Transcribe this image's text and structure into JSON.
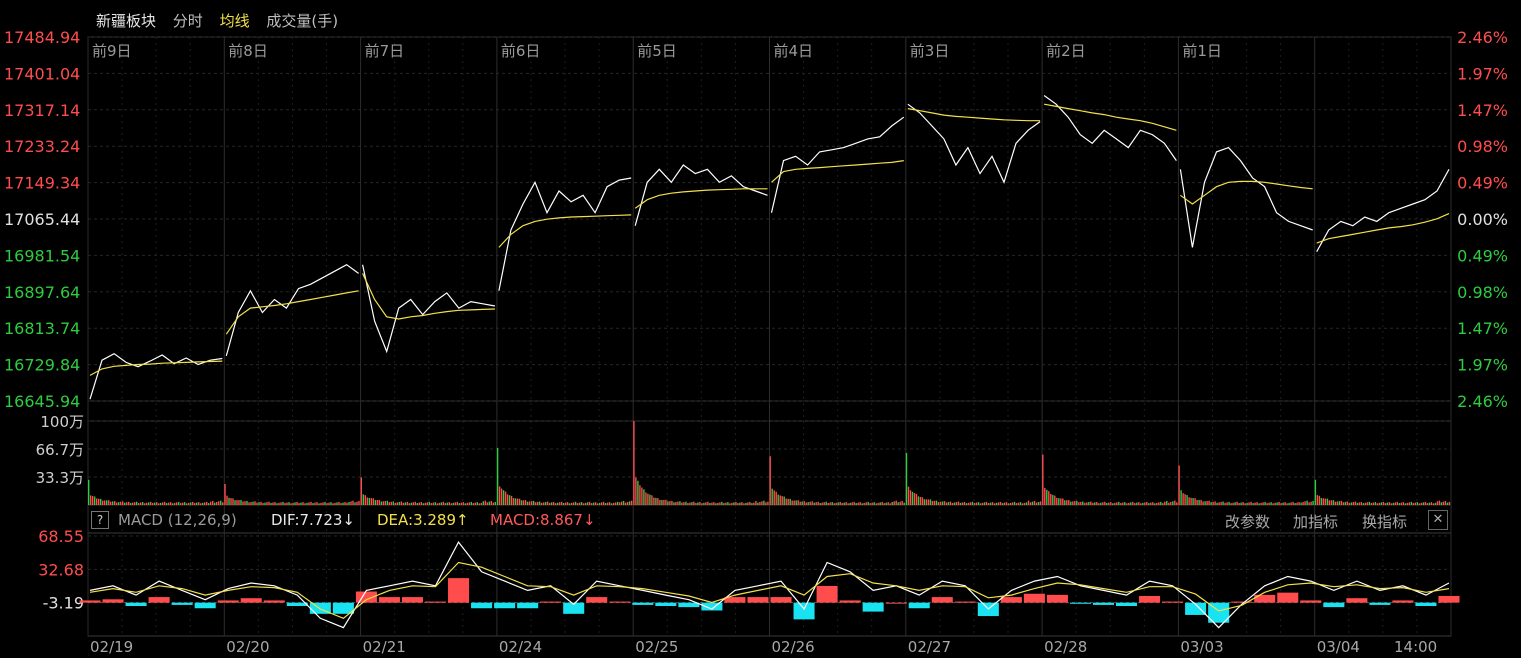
{
  "header": {
    "name": "新疆板块",
    "mode": "分时",
    "avg_label": "均线",
    "vol_label": "成交量(手)"
  },
  "colors": {
    "up": "#ff4d4d",
    "down": "#2ecc40",
    "price_line": "#ffffff",
    "avg_line": "#f2e04a",
    "macd_neg": "#19e3f0",
    "grid": "#2a2a2a"
  },
  "chart_data": {
    "type": "line",
    "day_labels": [
      "前9日",
      "前8日",
      "前7日",
      "前6日",
      "前5日",
      "前4日",
      "前3日",
      "前2日",
      "前1日"
    ],
    "dates": [
      "02/19",
      "02/20",
      "02/21",
      "02/24",
      "02/25",
      "02/26",
      "02/27",
      "02/28",
      "03/03",
      "03/04"
    ],
    "time_label": "14:00",
    "price_ticks": [
      "17484.94",
      "17401.04",
      "17317.14",
      "17233.24",
      "17149.34",
      "17065.44",
      "16981.54",
      "16897.64",
      "16813.74",
      "16729.84",
      "16645.94"
    ],
    "pct_ticks": [
      "2.46%",
      "1.97%",
      "1.47%",
      "0.98%",
      "0.49%",
      "0.00%",
      "0.49%",
      "0.98%",
      "1.47%",
      "1.97%",
      "2.46%"
    ],
    "price_range": [
      16645.94,
      17484.94
    ],
    "base_price": 17065.44,
    "days": [
      {
        "price": [
          16650,
          16740,
          16755,
          16735,
          16725,
          16738,
          16752,
          16732,
          16745,
          16730,
          16740,
          16744
        ],
        "avg": [
          16705,
          16720,
          16726,
          16728,
          16730,
          16731,
          16733,
          16734,
          16735,
          16736,
          16737,
          16738
        ]
      },
      {
        "price": [
          16750,
          16850,
          16900,
          16850,
          16880,
          16860,
          16905,
          16915,
          16930,
          16945,
          16960,
          16940
        ],
        "avg": [
          16800,
          16840,
          16860,
          16863,
          16866,
          16870,
          16875,
          16880,
          16885,
          16890,
          16895,
          16900
        ]
      },
      {
        "price": [
          16960,
          16830,
          16760,
          16860,
          16880,
          16845,
          16875,
          16895,
          16860,
          16875,
          16870,
          16865
        ],
        "avg": [
          16940,
          16880,
          16840,
          16835,
          16840,
          16843,
          16848,
          16852,
          16855,
          16856,
          16857,
          16858
        ]
      },
      {
        "price": [
          16900,
          17040,
          17100,
          17150,
          17080,
          17130,
          17105,
          17120,
          17080,
          17140,
          17155,
          17160
        ],
        "avg": [
          17000,
          17030,
          17050,
          17060,
          17065,
          17068,
          17070,
          17071,
          17072,
          17073,
          17074,
          17075
        ]
      },
      {
        "price": [
          17050,
          17150,
          17180,
          17150,
          17190,
          17170,
          17180,
          17150,
          17165,
          17140,
          17130,
          17120
        ],
        "avg": [
          17090,
          17110,
          17120,
          17125,
          17128,
          17130,
          17132,
          17133,
          17134,
          17135,
          17135,
          17135
        ]
      },
      {
        "price": [
          17080,
          17200,
          17210,
          17190,
          17220,
          17225,
          17230,
          17240,
          17250,
          17255,
          17280,
          17300
        ],
        "avg": [
          17150,
          17175,
          17180,
          17182,
          17184,
          17186,
          17188,
          17190,
          17192,
          17194,
          17196,
          17200
        ]
      },
      {
        "price": [
          17330,
          17310,
          17280,
          17250,
          17190,
          17230,
          17170,
          17210,
          17150,
          17240,
          17270,
          17290
        ],
        "avg": [
          17320,
          17315,
          17310,
          17305,
          17302,
          17300,
          17298,
          17296,
          17294,
          17293,
          17292,
          17292
        ]
      },
      {
        "price": [
          17350,
          17330,
          17300,
          17260,
          17240,
          17270,
          17250,
          17230,
          17270,
          17260,
          17240,
          17200
        ],
        "avg": [
          17330,
          17325,
          17320,
          17315,
          17310,
          17306,
          17300,
          17296,
          17292,
          17286,
          17278,
          17270
        ]
      },
      {
        "price": [
          17180,
          17000,
          17150,
          17220,
          17230,
          17200,
          17160,
          17140,
          17080,
          17060,
          17050,
          17040
        ],
        "avg": [
          17120,
          17100,
          17120,
          17140,
          17150,
          17152,
          17152,
          17150,
          17146,
          17142,
          17138,
          17135
        ]
      },
      {
        "price": [
          16990,
          17040,
          17060,
          17050,
          17070,
          17060,
          17080,
          17090,
          17100,
          17110,
          17130,
          17180
        ],
        "avg": [
          17010,
          17020,
          17025,
          17030,
          17035,
          17040,
          17045,
          17048,
          17052,
          17058,
          17066,
          17078
        ]
      }
    ],
    "volume": {
      "ticks": [
        "100万",
        "66.7万",
        "33.3万"
      ],
      "max": 1000000,
      "day_open": [
        300000,
        250000,
        330000,
        680000,
        1000000,
        580000,
        620000,
        600000,
        470000,
        300000
      ]
    },
    "macd": {
      "label": "MACD (12,26,9)",
      "dif": "DIF:7.723↓",
      "dea": "DEA:3.289↑",
      "macd": "MACD:8.867↓",
      "ticks": [
        "68.55",
        "32.68",
        "-3.19"
      ],
      "range": [
        -39.06,
        68.55
      ],
      "dif_series": [
        10,
        15,
        5,
        20,
        10,
        0,
        12,
        18,
        15,
        5,
        -20,
        -30,
        10,
        15,
        20,
        15,
        62,
        30,
        20,
        10,
        15,
        -5,
        20,
        15,
        10,
        5,
        0,
        -10,
        10,
        15,
        20,
        -10,
        40,
        30,
        10,
        15,
        5,
        20,
        15,
        -10,
        10,
        20,
        25,
        15,
        10,
        5,
        20,
        15,
        -5,
        -30,
        -5,
        15,
        25,
        20,
        10,
        20,
        10,
        15,
        5,
        18
      ],
      "dea_series": [
        8,
        12,
        8,
        15,
        12,
        5,
        10,
        14,
        13,
        8,
        -10,
        -20,
        0,
        10,
        15,
        14,
        40,
        35,
        25,
        15,
        14,
        5,
        15,
        14,
        12,
        8,
        4,
        -3,
        5,
        10,
        15,
        5,
        25,
        28,
        18,
        15,
        10,
        15,
        14,
        2,
        5,
        12,
        18,
        16,
        12,
        8,
        14,
        14,
        6,
        -12,
        -6,
        8,
        16,
        18,
        14,
        16,
        12,
        13,
        8,
        12
      ],
      "actions": [
        "改参数",
        "加指标",
        "换指标"
      ]
    }
  }
}
